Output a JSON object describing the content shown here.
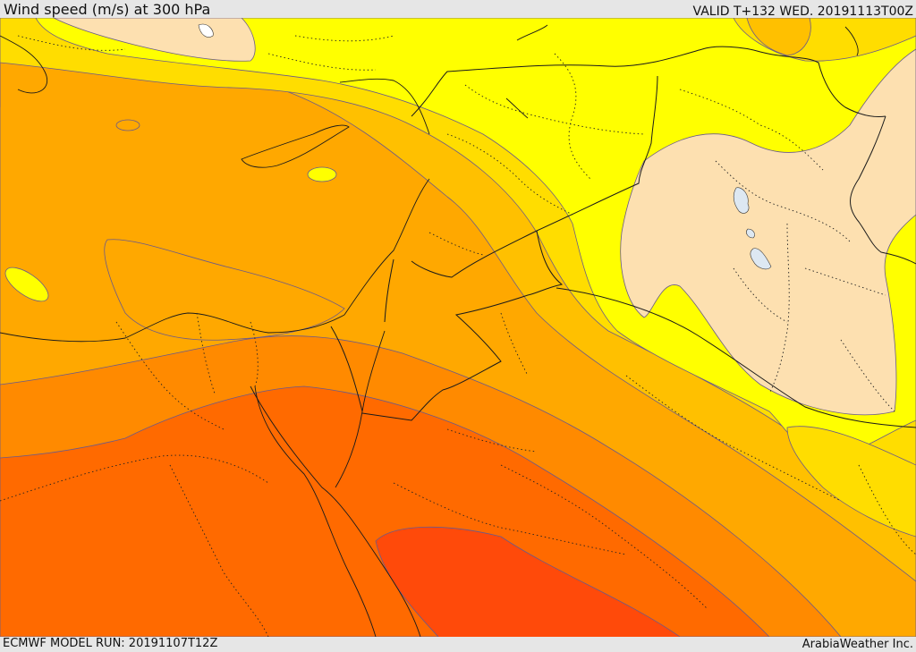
{
  "header": {
    "title": "Wind speed (m/s) at 300 hPa",
    "valid": "VALID T+132 WED. 20191113T00Z"
  },
  "footer": {
    "model_run": "ECMWF MODEL RUN: 20191107T12Z",
    "credit": "ArabiaWeather Inc."
  },
  "map": {
    "field": "wind-speed",
    "colors": {
      "lightest": "#fde0b0",
      "yellow": "#ffff00",
      "gold": "#ffdd00",
      "amber": "#ffc000",
      "orange_light": "#ffa800",
      "orange": "#ff8a00",
      "orange_dark": "#ff6a00",
      "red_orange": "#ff4a0a",
      "lake": "#dde8f2"
    }
  }
}
